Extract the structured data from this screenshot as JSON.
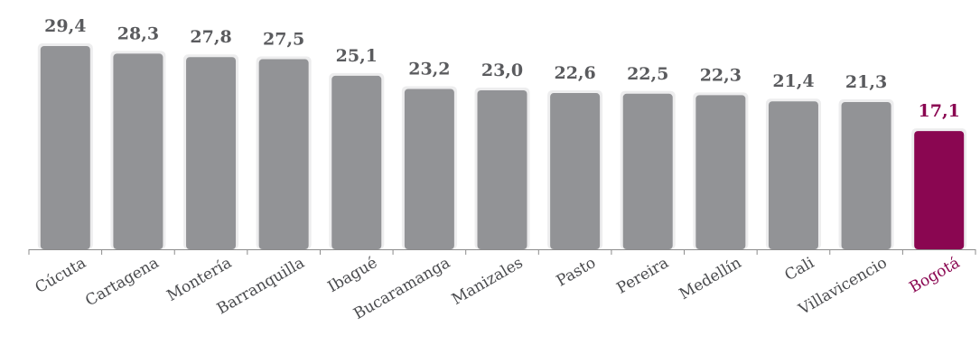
{
  "chart_data": {
    "type": "bar",
    "categories": [
      "Cúcuta",
      "Cartagena",
      "Montería",
      "Barranquilla",
      "Ibagué",
      "Bucaramanga",
      "Manizales",
      "Pasto",
      "Pereira",
      "Medellín",
      "Cali",
      "Villavicencio",
      "Bogotá"
    ],
    "values": [
      29.4,
      28.3,
      27.8,
      27.5,
      25.1,
      23.2,
      23.0,
      22.6,
      22.5,
      22.3,
      21.4,
      21.3,
      17.1
    ],
    "value_labels": [
      "29,4",
      "28,3",
      "27,8",
      "27,5",
      "25,1",
      "23,2",
      "23,0",
      "22,6",
      "22,5",
      "22,3",
      "21,4",
      "21,3",
      "17,1"
    ],
    "highlight": "Bogotá",
    "title": "",
    "xlabel": "",
    "ylabel": "",
    "ylim": [
      0,
      30
    ],
    "grid": false,
    "legend": "none",
    "colors": {
      "bar": "#929396",
      "bar_halo": "#ededee",
      "highlight": "#8a0651",
      "value_text": "#5a5b5e",
      "category_text": "#4a4b4e",
      "axis": "#8c8c8c"
    }
  }
}
